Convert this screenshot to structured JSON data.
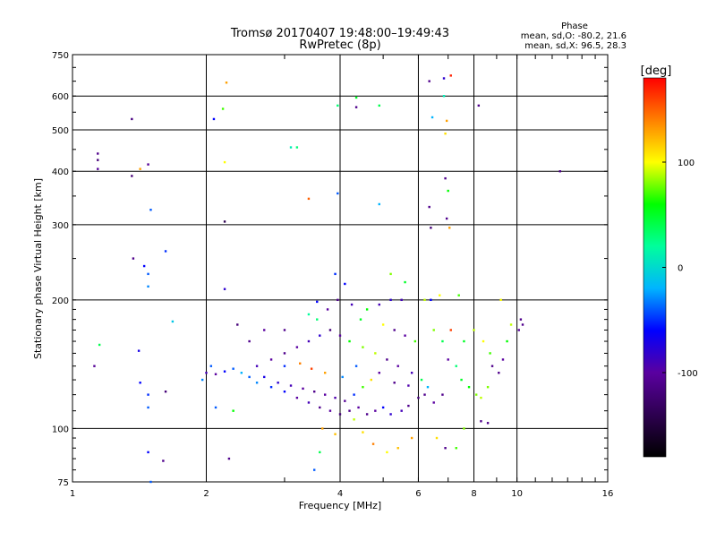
{
  "header": {
    "title_line1": "Tromsø 20170407 19:48:00–19:49:43",
    "title_line2": "RwPretec (8p)",
    "phase_heading": "Phase",
    "phase_stat_o": "mean, sd,O: -80.2, 21.6",
    "phase_stat_x": "mean, sd,X:  96.5, 28.3"
  },
  "colorbar": {
    "unit_label": "[deg]",
    "ticks": [
      {
        "value": 100,
        "label": "100"
      },
      {
        "value": 0,
        "label": "0"
      },
      {
        "value": -100,
        "label": "-100"
      }
    ],
    "range": [
      -180,
      180
    ],
    "colors": [
      "#000000",
      "#2d0050",
      "#5a00a0",
      "#0000ff",
      "#00b4ff",
      "#00ff9c",
      "#00ff00",
      "#ffff00",
      "#ff8000",
      "#ff0000"
    ]
  },
  "chart_data": {
    "type": "scatter",
    "title": "Tromsø 20170407 19:48:00–19:49:43",
    "subtitle": "RwPretec (8p)",
    "xlabel": "Frequency [MHz]",
    "ylabel": "Stationary phase Virtual Height [km]",
    "x_scale": "log",
    "y_scale": "log",
    "xlim": [
      1,
      16
    ],
    "ylim": [
      75,
      750
    ],
    "x_ticks": [
      1,
      2,
      4,
      6,
      8,
      10,
      16
    ],
    "y_ticks": [
      75,
      100,
      200,
      300,
      400,
      500,
      600,
      750
    ],
    "grid": true,
    "color_variable": "Phase [deg]",
    "points": [
      [
        1.14,
        440,
        -110
      ],
      [
        1.14,
        425,
        -120
      ],
      [
        1.14,
        405,
        -105
      ],
      [
        1.36,
        530,
        -115
      ],
      [
        1.36,
        390,
        -120
      ],
      [
        1.42,
        405,
        130
      ],
      [
        1.48,
        415,
        -105
      ],
      [
        1.5,
        325,
        -40
      ],
      [
        1.37,
        250,
        -110
      ],
      [
        1.45,
        240,
        -60
      ],
      [
        1.48,
        230,
        -40
      ],
      [
        1.48,
        215,
        -30
      ],
      [
        1.62,
        260,
        -50
      ],
      [
        1.68,
        178,
        -10
      ],
      [
        1.15,
        157,
        40
      ],
      [
        1.12,
        140,
        -105
      ],
      [
        1.41,
        152,
        -70
      ],
      [
        1.42,
        128,
        -60
      ],
      [
        1.48,
        120,
        -50
      ],
      [
        1.48,
        112,
        -40
      ],
      [
        1.62,
        122,
        -120
      ],
      [
        1.48,
        88,
        -60
      ],
      [
        1.6,
        84,
        -110
      ],
      [
        1.5,
        75,
        -40
      ],
      [
        2.08,
        530,
        -60
      ],
      [
        2.22,
        645,
        130
      ],
      [
        2.18,
        560,
        70
      ],
      [
        2.2,
        420,
        100
      ],
      [
        2.2,
        305,
        -140
      ],
      [
        2.2,
        212,
        -80
      ],
      [
        2.25,
        85,
        -110
      ],
      [
        2.1,
        112,
        -40
      ],
      [
        3.1,
        455,
        10
      ],
      [
        3.2,
        455,
        30
      ],
      [
        3.4,
        345,
        150
      ],
      [
        3.95,
        355,
        -40
      ],
      [
        3.95,
        570,
        30
      ],
      [
        4.35,
        595,
        50
      ],
      [
        4.35,
        565,
        -110
      ],
      [
        4.9,
        570,
        40
      ],
      [
        4.9,
        335,
        -20
      ],
      [
        6.35,
        650,
        -110
      ],
      [
        6.85,
        660,
        -80
      ],
      [
        7.1,
        670,
        170
      ],
      [
        6.85,
        600,
        10
      ],
      [
        6.45,
        535,
        -20
      ],
      [
        6.95,
        525,
        130
      ],
      [
        6.9,
        490,
        110
      ],
      [
        6.9,
        385,
        -110
      ],
      [
        7.0,
        360,
        60
      ],
      [
        6.35,
        330,
        -110
      ],
      [
        6.95,
        310,
        -110
      ],
      [
        7.05,
        295,
        130
      ],
      [
        6.4,
        295,
        -120
      ],
      [
        8.2,
        570,
        -110
      ],
      [
        12.5,
        400,
        -110
      ],
      [
        3.55,
        198,
        -60
      ],
      [
        3.4,
        185,
        20
      ],
      [
        3.9,
        230,
        -50
      ],
      [
        4.1,
        218,
        -60
      ],
      [
        4.6,
        190,
        60
      ],
      [
        5.2,
        230,
        80
      ],
      [
        5.6,
        220,
        50
      ],
      [
        6.2,
        200,
        90
      ],
      [
        7.4,
        205,
        70
      ],
      [
        9.2,
        200,
        100
      ],
      [
        9.7,
        175,
        90
      ],
      [
        10.1,
        170,
        -100
      ],
      [
        10.2,
        180,
        -110
      ],
      [
        10.3,
        175,
        -110
      ],
      [
        9.5,
        160,
        60
      ],
      [
        8.7,
        150,
        70
      ],
      [
        8.6,
        125,
        80
      ],
      [
        8.1,
        120,
        80
      ],
      [
        8.3,
        118,
        90
      ],
      [
        7.8,
        125,
        60
      ],
      [
        7.5,
        130,
        50
      ],
      [
        7.3,
        140,
        30
      ],
      [
        7.0,
        145,
        -100
      ],
      [
        6.8,
        120,
        -110
      ],
      [
        6.5,
        115,
        -100
      ],
      [
        6.3,
        125,
        -20
      ],
      [
        6.0,
        118,
        -120
      ],
      [
        5.7,
        113,
        -110
      ],
      [
        5.5,
        110,
        -90
      ],
      [
        5.2,
        108,
        -80
      ],
      [
        5.0,
        112,
        -60
      ],
      [
        4.8,
        110,
        -100
      ],
      [
        4.6,
        108,
        -110
      ],
      [
        4.4,
        112,
        -100
      ],
      [
        4.2,
        110,
        -110
      ],
      [
        4.0,
        108,
        -120
      ],
      [
        3.8,
        110,
        -100
      ],
      [
        3.6,
        112,
        -110
      ],
      [
        3.4,
        115,
        -90
      ],
      [
        3.2,
        118,
        -100
      ],
      [
        3.0,
        122,
        -60
      ],
      [
        2.8,
        125,
        -50
      ],
      [
        2.6,
        128,
        -30
      ],
      [
        2.5,
        132,
        -40
      ],
      [
        2.4,
        135,
        -20
      ],
      [
        2.3,
        138,
        -40
      ],
      [
        2.2,
        136,
        -60
      ],
      [
        2.1,
        134,
        -100
      ],
      [
        2.0,
        135,
        -90
      ],
      [
        1.96,
        130,
        -30
      ],
      [
        2.05,
        140,
        -40
      ],
      [
        2.6,
        140,
        -90
      ],
      [
        2.8,
        145,
        -100
      ],
      [
        3.0,
        150,
        -110
      ],
      [
        3.2,
        155,
        -100
      ],
      [
        3.4,
        160,
        -90
      ],
      [
        3.6,
        165,
        -80
      ],
      [
        3.8,
        170,
        -120
      ],
      [
        4.0,
        165,
        -100
      ],
      [
        4.2,
        160,
        60
      ],
      [
        4.5,
        155,
        80
      ],
      [
        4.8,
        150,
        90
      ],
      [
        5.1,
        145,
        -110
      ],
      [
        5.4,
        140,
        -100
      ],
      [
        5.8,
        135,
        -90
      ],
      [
        6.1,
        130,
        40
      ],
      [
        2.7,
        132,
        -70
      ],
      [
        2.9,
        128,
        -80
      ],
      [
        3.1,
        126,
        -90
      ],
      [
        3.3,
        124,
        -100
      ],
      [
        3.5,
        122,
        -110
      ],
      [
        3.7,
        120,
        -100
      ],
      [
        3.9,
        118,
        -95
      ],
      [
        4.1,
        116,
        -105
      ],
      [
        4.3,
        120,
        -50
      ],
      [
        4.5,
        125,
        70
      ],
      [
        4.7,
        130,
        110
      ],
      [
        4.9,
        135,
        -100
      ],
      [
        5.3,
        128,
        -110
      ],
      [
        5.7,
        126,
        -95
      ],
      [
        6.2,
        120,
        -110
      ],
      [
        3.0,
        140,
        -50
      ],
      [
        3.25,
        142,
        140
      ],
      [
        3.45,
        138,
        160
      ],
      [
        3.7,
        135,
        130
      ],
      [
        4.05,
        132,
        -30
      ],
      [
        4.35,
        140,
        -40
      ],
      [
        3.55,
        180,
        30
      ],
      [
        3.75,
        190,
        -100
      ],
      [
        3.95,
        200,
        -110
      ],
      [
        4.25,
        195,
        -90
      ],
      [
        4.45,
        180,
        50
      ],
      [
        5.0,
        175,
        100
      ],
      [
        5.3,
        170,
        -110
      ],
      [
        5.6,
        165,
        -100
      ],
      [
        5.9,
        160,
        70
      ],
      [
        6.5,
        170,
        80
      ],
      [
        6.8,
        160,
        40
      ],
      [
        7.1,
        170,
        160
      ],
      [
        7.6,
        160,
        50
      ],
      [
        8.0,
        170,
        90
      ],
      [
        8.4,
        160,
        100
      ],
      [
        8.8,
        140,
        -110
      ],
      [
        9.1,
        135,
        -110
      ],
      [
        9.3,
        145,
        -100
      ],
      [
        6.4,
        200,
        -60
      ],
      [
        6.7,
        205,
        100
      ],
      [
        5.5,
        200,
        -90
      ],
      [
        5.2,
        200,
        -80
      ],
      [
        4.9,
        195,
        -90
      ],
      [
        3.65,
        100,
        130
      ],
      [
        3.9,
        97,
        120
      ],
      [
        4.3,
        105,
        90
      ],
      [
        4.5,
        98,
        110
      ],
      [
        4.75,
        92,
        140
      ],
      [
        5.1,
        88,
        100
      ],
      [
        5.4,
        90,
        120
      ],
      [
        5.8,
        95,
        130
      ],
      [
        6.6,
        95,
        110
      ],
      [
        6.9,
        90,
        -110
      ],
      [
        7.3,
        90,
        70
      ],
      [
        7.6,
        100,
        80
      ],
      [
        8.3,
        104,
        -110
      ],
      [
        8.6,
        103,
        -110
      ],
      [
        3.6,
        88,
        40
      ],
      [
        3.5,
        80,
        -40
      ],
      [
        2.3,
        110,
        60
      ],
      [
        3.0,
        170,
        -110
      ],
      [
        2.7,
        170,
        -100
      ],
      [
        2.5,
        160,
        -110
      ],
      [
        2.35,
        175,
        -120
      ]
    ]
  }
}
